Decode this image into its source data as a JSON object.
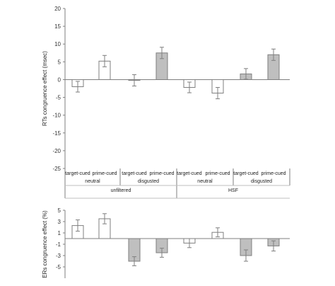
{
  "chart_data": [
    {
      "type": "bar",
      "ylabel": "RTs congruence effect (msec)",
      "ylim": [
        -25,
        20
      ],
      "yticks": [
        "20",
        "15",
        "10",
        "5",
        "0",
        "-5",
        "-10",
        "-15",
        "-20",
        "-25"
      ],
      "ytick_values": [
        20,
        15,
        10,
        5,
        0,
        -5,
        -10,
        -15,
        -20,
        -25
      ],
      "categories": [
        "target-cued",
        "prime-cued",
        "target-cued",
        "prime-cued",
        "target-cued",
        "prime-cued",
        "target-cued",
        "prime-cued"
      ],
      "groups_level2": [
        "neutral",
        "disgusted",
        "neutral",
        "disgusted"
      ],
      "groups_level1": [
        "unfiltered",
        "HSF"
      ],
      "values": [
        -2.0,
        5.2,
        -0.2,
        7.5,
        -2.2,
        -3.8,
        1.6,
        7.0
      ],
      "errors": [
        1.5,
        1.6,
        1.6,
        1.6,
        1.5,
        1.6,
        1.5,
        1.6
      ],
      "fills": [
        "#ffffff",
        "#ffffff",
        "#ffffff",
        "#bfbfbf",
        "#ffffff",
        "#ffffff",
        "#bfbfbf",
        "#bfbfbf"
      ],
      "grid": false
    },
    {
      "type": "bar",
      "ylabel": "ERs congruence effect (%)",
      "ylim": [
        -7,
        5
      ],
      "yticks": [
        "5",
        "3",
        "1",
        "-1",
        "-3",
        "-5"
      ],
      "ytick_values": [
        5,
        3,
        1,
        -1,
        -3,
        -5
      ],
      "values": [
        2.3,
        3.5,
        -4.0,
        -2.5,
        -0.8,
        1.1,
        -3.0,
        -1.3
      ],
      "errors": [
        1.0,
        0.9,
        0.8,
        0.8,
        0.8,
        0.8,
        1.0,
        0.9
      ],
      "fills": [
        "#ffffff",
        "#ffffff",
        "#bfbfbf",
        "#bfbfbf",
        "#ffffff",
        "#ffffff",
        "#bfbfbf",
        "#bfbfbf"
      ],
      "grid": false
    }
  ],
  "colors": {
    "axis": "#7f7f7f",
    "bar_stroke": "#7f7f7f",
    "error_bar": "#7f7f7f",
    "gray_fill": "#bfbfbf"
  }
}
